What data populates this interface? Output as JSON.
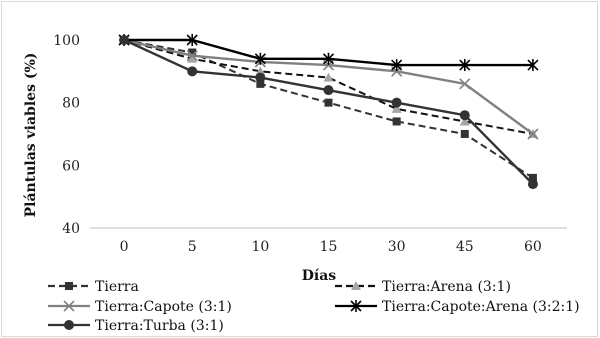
{
  "chart_data": {
    "type": "line",
    "categories": [
      "0",
      "5",
      "10",
      "15",
      "30",
      "45",
      "60"
    ],
    "xlabel": "Días",
    "ylabel": "Plántulas viables (%)",
    "ylim": [
      40,
      100
    ],
    "yticks": [
      40,
      60,
      80,
      100
    ],
    "grid": false,
    "legend_position": "bottom",
    "series": [
      {
        "name": "Tierra",
        "values": [
          100,
          96,
          86,
          80,
          74,
          70,
          56
        ],
        "color": "#333333",
        "dash": "dashed",
        "marker": "square"
      },
      {
        "name": "Tierra:Arena (3:1)",
        "values": [
          100,
          94,
          90,
          88,
          78,
          74,
          70
        ],
        "color": "#111111",
        "dash": "dashed",
        "marker": "triangle"
      },
      {
        "name": "Tierra:Capote (3:1)",
        "values": [
          100,
          95,
          93,
          92,
          90,
          86,
          70
        ],
        "color": "#808080",
        "dash": "solid",
        "marker": "x"
      },
      {
        "name": "Tierra:Capote:Arena (3:2:1)",
        "values": [
          100,
          100,
          94,
          94,
          92,
          92,
          92
        ],
        "color": "#000000",
        "dash": "solid",
        "marker": "asterisk"
      },
      {
        "name": "Tierra:Turba (3:1)",
        "values": [
          100,
          90,
          88,
          84,
          80,
          76,
          54
        ],
        "color": "#333333",
        "dash": "solid",
        "marker": "circle"
      }
    ]
  }
}
